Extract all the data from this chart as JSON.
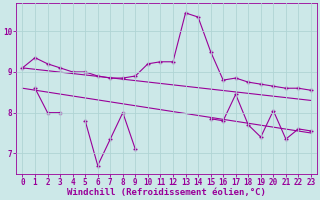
{
  "x_all": [
    0,
    1,
    2,
    3,
    4,
    5,
    6,
    7,
    8,
    9,
    10,
    11,
    12,
    13,
    14,
    15,
    16,
    17,
    18,
    19,
    20,
    21,
    22,
    23
  ],
  "line1_y": [
    9.1,
    9.35,
    9.2,
    9.1,
    9.0,
    9.0,
    8.9,
    8.85,
    8.85,
    8.9,
    9.2,
    9.25,
    9.25,
    10.45,
    10.35,
    9.5,
    8.8,
    8.85,
    8.75,
    8.7,
    8.65,
    8.6,
    8.6,
    8.55
  ],
  "line2_y": [
    null,
    8.6,
    8.0,
    8.0,
    null,
    7.8,
    6.7,
    7.35,
    8.0,
    7.1,
    null,
    null,
    null,
    null,
    null,
    7.85,
    7.8,
    8.45,
    7.7,
    7.4,
    8.05,
    7.35,
    7.6,
    7.55
  ],
  "trend1_x": [
    0,
    23
  ],
  "trend1_y": [
    9.1,
    8.3
  ],
  "trend2_x": [
    0,
    23
  ],
  "trend2_y": [
    8.6,
    7.5
  ],
  "line_color": "#990099",
  "bg_color": "#cce8e8",
  "grid_color": "#b0d4d4",
  "xlabel": "Windchill (Refroidissement éolien,°C)",
  "xlim": [
    -0.5,
    23.5
  ],
  "ylim": [
    6.5,
    10.7
  ],
  "yticks": [
    7,
    8,
    9,
    10
  ],
  "xticks": [
    0,
    1,
    2,
    3,
    4,
    5,
    6,
    7,
    8,
    9,
    10,
    11,
    12,
    13,
    14,
    15,
    16,
    17,
    18,
    19,
    20,
    21,
    22,
    23
  ],
  "tick_fontsize": 5.5,
  "xlabel_fontsize": 6.5,
  "marker": "+",
  "marker_size": 3,
  "line_width": 0.8
}
